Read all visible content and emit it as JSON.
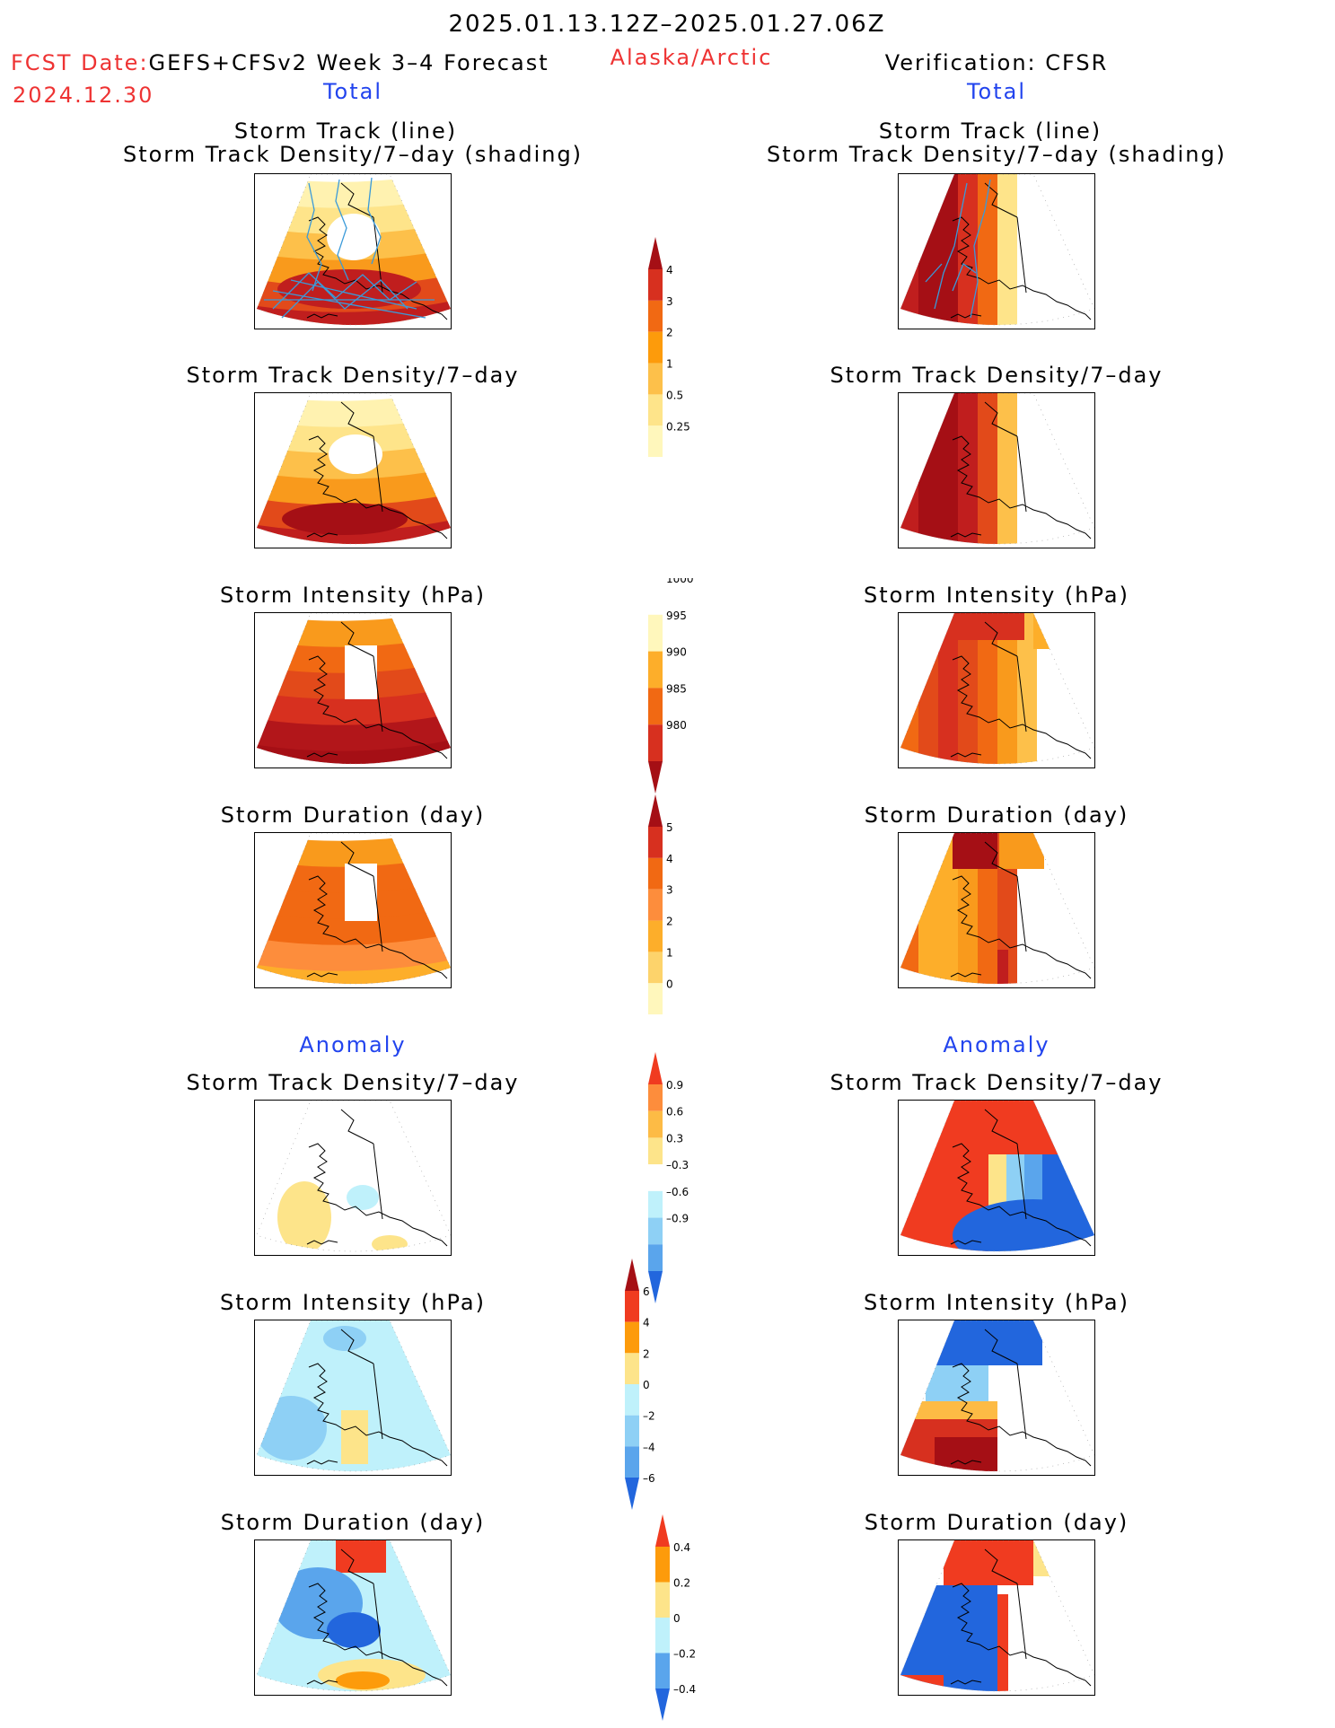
{
  "header": {
    "date_range": "2025.01.13.12Z–2025.01.27.06Z",
    "fcst_prefix": "FCST Date:",
    "fcst_model": "GEFS+CFSv2 Week 3–4 Forecast",
    "fcst_date": "2024.12.30",
    "region": "Alaska/Arctic",
    "verification": "Verification: CFSR",
    "left_total": "Total",
    "right_total": "Total",
    "left_anomaly": "Anomaly",
    "right_anomaly": "Anomaly"
  },
  "titles": {
    "track_line": "Storm Track (line)",
    "track_shading": "Storm Track Density/7–day (shading)",
    "density": "Storm Track Density/7–day",
    "intensity": "Storm Intensity (hPa)",
    "duration": "Storm Duration (day)"
  },
  "colors": {
    "map_border": "#000000",
    "title_red": "#ee3333",
    "title_blue": "#2244ee"
  },
  "chart_data": {
    "type": "heatmap",
    "panels": [
      {
        "column": "GEFS+CFSv2 Week 3–4 Forecast",
        "section": "Total",
        "field": "Storm Track Density/7–day (shading) with Storm Track (line)"
      },
      {
        "column": "Verification: CFSR",
        "section": "Total",
        "field": "Storm Track Density/7–day (shading) with Storm Track (line)"
      },
      {
        "column": "GEFS+CFSv2 Week 3–4 Forecast",
        "section": "Total",
        "field": "Storm Track Density/7–day"
      },
      {
        "column": "Verification: CFSR",
        "section": "Total",
        "field": "Storm Track Density/7–day"
      },
      {
        "column": "GEFS+CFSv2 Week 3–4 Forecast",
        "section": "Total",
        "field": "Storm Intensity (hPa)"
      },
      {
        "column": "Verification: CFSR",
        "section": "Total",
        "field": "Storm Intensity (hPa)"
      },
      {
        "column": "GEFS+CFSv2 Week 3–4 Forecast",
        "section": "Total",
        "field": "Storm Duration (day)"
      },
      {
        "column": "Verification: CFSR",
        "section": "Total",
        "field": "Storm Duration (day)"
      },
      {
        "column": "GEFS+CFSv2 Week 3–4 Forecast",
        "section": "Anomaly",
        "field": "Storm Track Density/7–day"
      },
      {
        "column": "Verification: CFSR",
        "section": "Anomaly",
        "field": "Storm Track Density/7–day"
      },
      {
        "column": "GEFS+CFSv2 Week 3–4 Forecast",
        "section": "Anomaly",
        "field": "Storm Intensity (hPa)"
      },
      {
        "column": "Verification: CFSR",
        "section": "Anomaly",
        "field": "Storm Intensity (hPa)"
      },
      {
        "column": "GEFS+CFSv2 Week 3–4 Forecast",
        "section": "Anomaly",
        "field": "Storm Duration (day)"
      },
      {
        "column": "Verification: CFSR",
        "section": "Anomaly",
        "field": "Storm Duration (day)"
      }
    ],
    "colorbars": [
      {
        "id": "density_total",
        "labels": [
          "4",
          "3",
          "2",
          "1",
          "0.5",
          "0.25"
        ],
        "colors": [
          "#a50f15",
          "#d7301f",
          "#f16913",
          "#fd9b0b",
          "#fdc04a",
          "#fee48a",
          "#fff7bc",
          "#ffffff"
        ]
      },
      {
        "id": "intensity_total",
        "labels": [
          "1000",
          "995",
          "990",
          "985",
          "980"
        ],
        "colors": [
          "#ffffff",
          "#fff7bc",
          "#fdae2a",
          "#f16913",
          "#d7301f",
          "#a50f15"
        ]
      },
      {
        "id": "duration_total",
        "labels": [
          "5",
          "4",
          "3",
          "2",
          "1",
          "0"
        ],
        "colors": [
          "#a50f15",
          "#d7301f",
          "#f16913",
          "#fd8d3c",
          "#fdae2a",
          "#fdd36b",
          "#fff7bc",
          "#ffffff"
        ]
      },
      {
        "id": "density_anom",
        "labels": [
          "0.9",
          "0.6",
          "0.3",
          "–0.3",
          "–0.6",
          "–0.9"
        ],
        "colors": [
          "#f03b20",
          "#fd8d3c",
          "#fdbb45",
          "#fde48a",
          "#ffffff",
          "#bff1fb",
          "#8ed0f5",
          "#5aa5ec",
          "#2266dd"
        ]
      },
      {
        "id": "intensity_anom",
        "labels": [
          "6",
          "4",
          "2",
          "0",
          "–2",
          "–4",
          "–6"
        ],
        "colors": [
          "#a50f15",
          "#f03b20",
          "#fd9b0b",
          "#fde48a",
          "#bff1fb",
          "#8ed0f5",
          "#5aa5ec",
          "#2266dd"
        ]
      },
      {
        "id": "duration_anom",
        "labels": [
          "0.4",
          "0.2",
          "0",
          "–0.2",
          "–0.4"
        ],
        "colors": [
          "#f03b20",
          "#fd9b0b",
          "#fde48a",
          "#bff1fb",
          "#5aa5ec",
          "#2266dd"
        ]
      }
    ]
  }
}
